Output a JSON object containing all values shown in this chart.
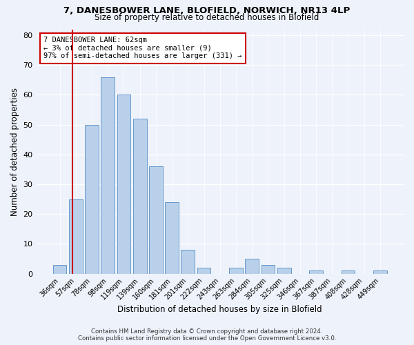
{
  "title_line1": "7, DANESBOWER LANE, BLOFIELD, NORWICH, NR13 4LP",
  "title_line2": "Size of property relative to detached houses in Blofield",
  "xlabel": "Distribution of detached houses by size in Blofield",
  "ylabel": "Number of detached properties",
  "bar_labels": [
    "36sqm",
    "57sqm",
    "78sqm",
    "98sqm",
    "119sqm",
    "139sqm",
    "160sqm",
    "181sqm",
    "201sqm",
    "222sqm",
    "243sqm",
    "263sqm",
    "284sqm",
    "305sqm",
    "325sqm",
    "346sqm",
    "367sqm",
    "387sqm",
    "408sqm",
    "428sqm",
    "449sqm"
  ],
  "bar_values": [
    3,
    25,
    50,
    66,
    60,
    52,
    36,
    24,
    8,
    2,
    0,
    2,
    5,
    3,
    2,
    0,
    1,
    0,
    1,
    0,
    1
  ],
  "bar_color": "#b8d0ea",
  "bar_edge_color": "#6699cc",
  "marker_line_color": "#cc0000",
  "annotation_line1": "7 DANESBOWER LANE: 62sqm",
  "annotation_line2": "← 3% of detached houses are smaller (9)",
  "annotation_line3": "97% of semi-detached houses are larger (331) →",
  "annotation_box_color": "#ffffff",
  "annotation_box_edge": "#cc0000",
  "ylim": [
    0,
    82
  ],
  "yticks": [
    0,
    10,
    20,
    30,
    40,
    50,
    60,
    70,
    80
  ],
  "footer_line1": "Contains HM Land Registry data © Crown copyright and database right 2024.",
  "footer_line2": "Contains public sector information licensed under the Open Government Licence v3.0.",
  "bg_color": "#eef2fa",
  "grid_color": "#ffffff"
}
